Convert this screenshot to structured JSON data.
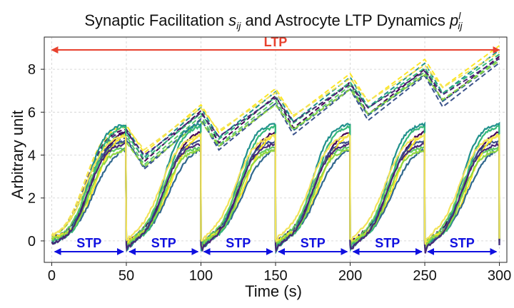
{
  "chart_data": {
    "type": "line",
    "title": "Synaptic Facilitation s_ij and Astrocyte LTP Dynamics p^l_ij",
    "title_parts": {
      "prefix": "Synaptic Facilitation ",
      "s": "s",
      "s_sub": "ij",
      "middle": " and Astrocyte LTP Dynamics ",
      "p": "p",
      "p_sup": "l",
      "p_sub": "ij"
    },
    "xlabel": "Time (s)",
    "ylabel": "Arbitrary unit",
    "xlim": [
      -5,
      305
    ],
    "ylim": [
      -1,
      9.5
    ],
    "xticks": [
      0,
      50,
      100,
      150,
      200,
      250,
      300
    ],
    "yticks": [
      0,
      2,
      4,
      6,
      8
    ],
    "grid": true,
    "colors": [
      "#440154",
      "#3b528b",
      "#21918c",
      "#5ec962",
      "#fde725",
      "#31688e",
      "#35b779",
      "#90d743",
      "#482878",
      "#f2e35a"
    ],
    "stp_curves": {
      "count": 10,
      "line_style": "solid",
      "period_s": 50,
      "description_values": {
        "start_level": [
          0.0,
          0.1,
          -0.2,
          0.0,
          0.1,
          -0.1,
          0.0,
          0.05,
          -0.2,
          0.1
        ],
        "plateau_level": [
          5.3,
          4.7,
          5.5,
          4.4,
          5.2,
          4.5,
          5.4,
          4.3,
          4.6,
          5.0
        ]
      }
    },
    "ltp_curves": {
      "count": 10,
      "line_style": "dashed",
      "start_value": 0.0,
      "end_values": [
        8.6,
        8.3,
        8.9,
        8.5,
        9.1,
        8.4,
        8.7,
        8.4,
        8.5,
        8.8
      ],
      "peak_values_first_period": [
        5.2,
        4.8,
        5.3,
        4.9,
        5.4,
        4.7,
        5.0,
        4.6,
        5.1,
        5.3
      ]
    },
    "annotations": {
      "ltp": {
        "label": "LTP",
        "x_start": 0,
        "x_end": 300,
        "y": 8.9,
        "color": "#e8412e"
      },
      "stp": {
        "label": "STP",
        "color": "#1010e0",
        "y": -0.5,
        "segments": [
          [
            2,
            48
          ],
          [
            52,
            98
          ],
          [
            102,
            148
          ],
          [
            152,
            198
          ],
          [
            202,
            248
          ],
          [
            252,
            298
          ]
        ]
      }
    }
  }
}
